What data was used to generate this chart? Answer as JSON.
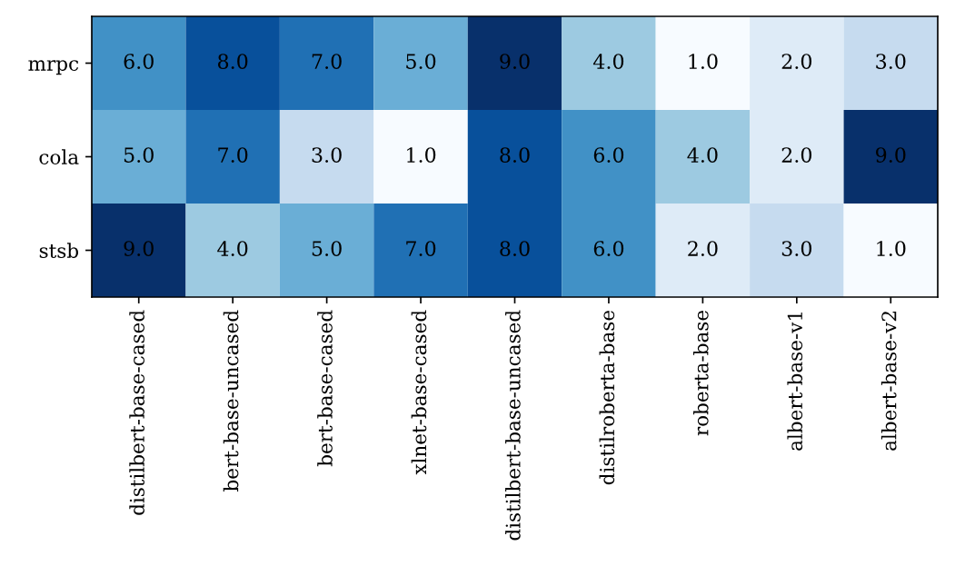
{
  "chart_data": {
    "type": "heatmap",
    "categories": [
      "distilbert-base-cased",
      "bert-base-uncased",
      "bert-base-cased",
      "xlnet-base-cased",
      "distilbert-base-uncased",
      "distilroberta-base",
      "roberta-base",
      "albert-base-v1",
      "albert-base-v2"
    ],
    "y_categories": [
      "mrpc",
      "cola",
      "stsb"
    ],
    "cells": [
      [
        6,
        8,
        7,
        5,
        9,
        4,
        1,
        2,
        3
      ],
      [
        5,
        7,
        3,
        1,
        8,
        6,
        4,
        2,
        9
      ],
      [
        9,
        4,
        5,
        7,
        8,
        6,
        2,
        3,
        1
      ]
    ],
    "cell_labels": [
      [
        "6.0",
        "8.0",
        "7.0",
        "5.0",
        "9.0",
        "4.0",
        "1.0",
        "2.0",
        "3.0"
      ],
      [
        "5.0",
        "7.0",
        "3.0",
        "1.0",
        "8.0",
        "6.0",
        "4.0",
        "2.0",
        "9.0"
      ],
      [
        "9.0",
        "4.0",
        "5.0",
        "7.0",
        "8.0",
        "6.0",
        "2.0",
        "3.0",
        "1.0"
      ]
    ]
  }
}
